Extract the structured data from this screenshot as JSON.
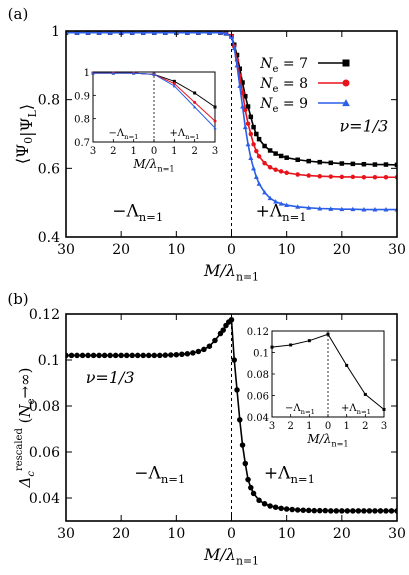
{
  "chart_data": [
    {
      "panel_label": "(a)",
      "type": "line",
      "xlabel": "M/λ",
      "xlabel_sub": "n=1",
      "ylabel": "⟨Ψ0|ΨL⟩",
      "xlim": [
        -30,
        30
      ],
      "ylim": [
        0.4,
        1.0
      ],
      "xticks": [
        -30,
        -20,
        -10,
        0,
        10,
        20,
        30
      ],
      "xtick_labels": [
        "30",
        "20",
        "10",
        "0",
        "10",
        "20",
        "30"
      ],
      "yticks": [
        0.4,
        0.6,
        0.8,
        1.0
      ],
      "ytick_labels": [
        "0.4",
        "0.6",
        "0.8",
        "1"
      ],
      "annotations": {
        "nu": "ν=1/3",
        "left_region": "−Λ",
        "left_region_sub": "n=1",
        "right_region": "+Λ",
        "right_region_sub": "n=1"
      },
      "legend_position": "top-right",
      "series": [
        {
          "name": "Ne = 7",
          "color": "#000000",
          "marker": "square",
          "x": [
            -30,
            -28,
            -26,
            -24,
            -22,
            -20,
            -18,
            -16,
            -14,
            -12,
            -10,
            -8,
            -6,
            -4,
            -2,
            -1,
            0,
            0.5,
            1,
            1.5,
            2,
            2.5,
            3,
            3.5,
            4,
            4.5,
            5,
            6,
            7,
            8,
            9,
            10,
            12,
            14,
            16,
            18,
            20,
            22,
            24,
            26,
            28,
            30
          ],
          "y": [
            0.995,
            0.995,
            0.995,
            0.995,
            0.995,
            0.995,
            0.995,
            0.995,
            0.995,
            0.995,
            0.995,
            0.995,
            0.995,
            0.995,
            0.995,
            0.993,
            0.985,
            0.96,
            0.93,
            0.89,
            0.85,
            0.81,
            0.78,
            0.75,
            0.72,
            0.7,
            0.685,
            0.665,
            0.652,
            0.643,
            0.636,
            0.631,
            0.625,
            0.621,
            0.618,
            0.616,
            0.614,
            0.613,
            0.612,
            0.611,
            0.611,
            0.61
          ]
        },
        {
          "name": "Ne = 8",
          "color": "#e8141c",
          "marker": "circle",
          "x": [
            -30,
            -28,
            -26,
            -24,
            -22,
            -20,
            -18,
            -16,
            -14,
            -12,
            -10,
            -8,
            -6,
            -4,
            -2,
            -1,
            0,
            0.5,
            1,
            1.5,
            2,
            2.5,
            3,
            3.5,
            4,
            4.5,
            5,
            6,
            7,
            8,
            9,
            10,
            12,
            14,
            16,
            18,
            20,
            22,
            24,
            26,
            28,
            30
          ],
          "y": [
            0.995,
            0.995,
            0.995,
            0.995,
            0.995,
            0.995,
            0.995,
            0.995,
            0.995,
            0.995,
            0.995,
            0.995,
            0.995,
            0.995,
            0.995,
            0.993,
            0.985,
            0.955,
            0.915,
            0.87,
            0.82,
            0.77,
            0.73,
            0.7,
            0.67,
            0.65,
            0.635,
            0.615,
            0.603,
            0.596,
            0.591,
            0.587,
            0.582,
            0.579,
            0.577,
            0.576,
            0.575,
            0.575,
            0.574,
            0.574,
            0.574,
            0.574
          ]
        },
        {
          "name": "Ne = 9",
          "color": "#2a5ee8",
          "marker": "triangle",
          "x": [
            -30,
            -28,
            -26,
            -24,
            -22,
            -20,
            -18,
            -16,
            -14,
            -12,
            -10,
            -8,
            -6,
            -4,
            -2,
            -1,
            0,
            0.5,
            1,
            1.5,
            2,
            2.5,
            3,
            3.5,
            4,
            4.5,
            5,
            6,
            7,
            8,
            9,
            10,
            12,
            14,
            16,
            18,
            20,
            22,
            24,
            26,
            28,
            30
          ],
          "y": [
            0.995,
            0.995,
            0.995,
            0.995,
            0.995,
            0.995,
            0.995,
            0.995,
            0.995,
            0.995,
            0.995,
            0.995,
            0.995,
            0.995,
            0.995,
            0.993,
            0.983,
            0.95,
            0.9,
            0.84,
            0.78,
            0.72,
            0.67,
            0.63,
            0.6,
            0.575,
            0.555,
            0.53,
            0.513,
            0.503,
            0.497,
            0.493,
            0.488,
            0.485,
            0.483,
            0.482,
            0.481,
            0.481,
            0.48,
            0.48,
            0.48,
            0.48
          ]
        }
      ],
      "inset": {
        "xlabel": "M/λ",
        "xlabel_sub": "n=1",
        "xlim": [
          -3,
          3
        ],
        "ylim": [
          0.7,
          1.0
        ],
        "xticks": [
          -3,
          -2,
          -1,
          0,
          1,
          2,
          3
        ],
        "xtick_labels": [
          "3",
          "2",
          "1",
          "0",
          "1",
          "2",
          "3"
        ],
        "yticks": [
          0.7,
          0.8,
          0.9,
          1.0
        ],
        "ytick_labels": [
          "0.7",
          "0.8",
          "0.9",
          "1"
        ],
        "left_region": "−Λ",
        "left_region_sub": "n=1",
        "right_region": "+Λ",
        "right_region_sub": "n=1",
        "series": [
          {
            "name": "Ne = 7",
            "x": [
              -3,
              -2,
              -1,
              0,
              1,
              2,
              3
            ],
            "y": [
              0.995,
              0.995,
              0.995,
              0.99,
              0.96,
              0.91,
              0.85
            ]
          },
          {
            "name": "Ne = 8",
            "x": [
              -3,
              -2,
              -1,
              0,
              1,
              2,
              3
            ],
            "y": [
              0.995,
              0.995,
              0.995,
              0.99,
              0.95,
              0.87,
              0.79
            ]
          },
          {
            "name": "Ne = 9",
            "x": [
              -3,
              -2,
              -1,
              0,
              1,
              2,
              3
            ],
            "y": [
              0.995,
              0.995,
              0.995,
              0.99,
              0.94,
              0.85,
              0.76
            ]
          }
        ]
      }
    },
    {
      "panel_label": "(b)",
      "type": "line",
      "xlabel": "M/λ",
      "xlabel_sub": "n=1",
      "ylabel": "Δc",
      "ylabel_sup": "rescaled",
      "ylabel_tail": "(Ne→∞)",
      "xlim": [
        -30,
        30
      ],
      "ylim": [
        0.03,
        0.12
      ],
      "xticks": [
        -30,
        -20,
        -10,
        0,
        10,
        20,
        30
      ],
      "xtick_labels": [
        "30",
        "20",
        "10",
        "0",
        "10",
        "20",
        "30"
      ],
      "yticks": [
        0.04,
        0.06,
        0.08,
        0.1,
        0.12
      ],
      "ytick_labels": [
        "0.04",
        "0.06",
        "0.08",
        "0.1",
        "0.12"
      ],
      "annotations": {
        "nu": "ν=1/3",
        "left_region": "−Λ",
        "left_region_sub": "n=1",
        "right_region": "+Λ",
        "right_region_sub": "n=1"
      },
      "series": [
        {
          "name": "",
          "color": "#000000",
          "marker": "circle",
          "x": [
            -30,
            -29,
            -28,
            -27,
            -26,
            -25,
            -24,
            -23,
            -22,
            -21,
            -20,
            -19,
            -18,
            -17,
            -16,
            -15,
            -14,
            -13,
            -12,
            -11,
            -10,
            -9,
            -8,
            -7,
            -6,
            -5,
            -4,
            -3,
            -2,
            -1.5,
            -1,
            -0.5,
            0,
            0.5,
            1,
            1.5,
            2,
            2.5,
            3,
            3.5,
            4,
            5,
            6,
            7,
            8,
            9,
            10,
            11,
            12,
            13,
            14,
            15,
            16,
            17,
            18,
            19,
            20,
            21,
            22,
            23,
            24,
            25,
            26,
            27,
            28,
            29,
            30
          ],
          "y": [
            0.102,
            0.102,
            0.102,
            0.102,
            0.102,
            0.102,
            0.102,
            0.102,
            0.102,
            0.102,
            0.102,
            0.102,
            0.102,
            0.102,
            0.102,
            0.102,
            0.102,
            0.102,
            0.1021,
            0.1022,
            0.1023,
            0.1025,
            0.1027,
            0.1031,
            0.1037,
            0.1046,
            0.106,
            0.1085,
            0.1115,
            0.113,
            0.115,
            0.1165,
            0.1175,
            0.1,
            0.087,
            0.074,
            0.063,
            0.055,
            0.048,
            0.0445,
            0.042,
            0.039,
            0.0375,
            0.0365,
            0.036,
            0.0355,
            0.0352,
            0.035,
            0.0348,
            0.0347,
            0.0346,
            0.0345,
            0.0345,
            0.0345,
            0.0344,
            0.0344,
            0.0344,
            0.0344,
            0.0344,
            0.0344,
            0.0344,
            0.0344,
            0.0344,
            0.0344,
            0.0344,
            0.0344,
            0.0344
          ]
        }
      ],
      "inset": {
        "xlabel": "M/λ",
        "xlabel_sub": "n=1",
        "xlim": [
          -3,
          3
        ],
        "ylim": [
          0.04,
          0.12
        ],
        "xticks": [
          -3,
          -2,
          -1,
          0,
          1,
          2,
          3
        ],
        "xtick_labels": [
          "3",
          "2",
          "1",
          "0",
          "1",
          "2",
          "3"
        ],
        "yticks": [
          0.04,
          0.06,
          0.08,
          0.1,
          0.12
        ],
        "ytick_labels": [
          "0.04",
          "0.06",
          "0.08",
          "0.1",
          "0.12"
        ],
        "left_region": "−Λ",
        "left_region_sub": "n=1",
        "right_region": "+Λ",
        "right_region_sub": "n=1",
        "series": [
          {
            "name": "",
            "x": [
              -3,
              -2,
              -1,
              0,
              1,
              2,
              3
            ],
            "y": [
              0.105,
              0.107,
              0.111,
              0.117,
              0.088,
              0.061,
              0.047
            ]
          }
        ]
      }
    }
  ]
}
